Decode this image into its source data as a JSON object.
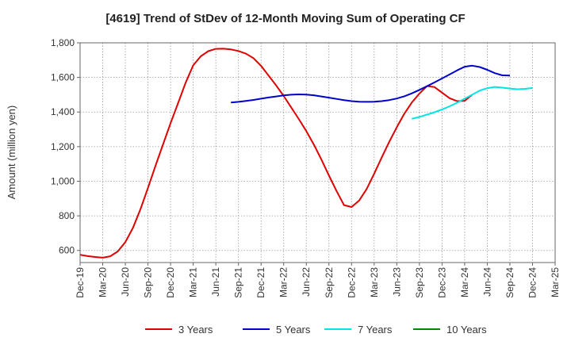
{
  "chart_data": {
    "type": "line",
    "title": "[4619]  Trend of StDev of 12-Month Moving Sum of Operating CF",
    "xlabel": "",
    "ylabel": "Amount (million yen)",
    "ylim": [
      530,
      1800
    ],
    "yticks": [
      600,
      800,
      1000,
      1200,
      1400,
      1600,
      1800
    ],
    "ytick_labels": [
      "600",
      "800",
      "1,000",
      "1,200",
      "1,400",
      "1,600",
      "1,800"
    ],
    "x_start": "2019-12",
    "x_end": "2025-03",
    "xtick_labels": [
      "Dec-19",
      "Mar-20",
      "Jun-20",
      "Sep-20",
      "Dec-20",
      "Mar-21",
      "Jun-21",
      "Sep-21",
      "Dec-21",
      "Mar-22",
      "Jun-22",
      "Sep-22",
      "Dec-22",
      "Mar-23",
      "Jun-23",
      "Sep-23",
      "Dec-23",
      "Mar-24",
      "Jun-24",
      "Sep-24",
      "Dec-24",
      "Mar-25"
    ],
    "grid": true,
    "legend_position": "bottom",
    "series": [
      {
        "name": "3 Years",
        "color": "#e00000",
        "start": "2019-12",
        "values": [
          575,
          567,
          562,
          558,
          566,
          594,
          648,
          730,
          838,
          962,
          1090,
          1213,
          1336,
          1452,
          1570,
          1670,
          1722,
          1752,
          1765,
          1766,
          1762,
          1753,
          1737,
          1711,
          1667,
          1610,
          1554,
          1493,
          1427,
          1360,
          1290,
          1212,
          1125,
          1033,
          944,
          862,
          851,
          888,
          955,
          1043,
          1137,
          1228,
          1312,
          1390,
          1455,
          1507,
          1550,
          1544,
          1512,
          1480,
          1463,
          1465,
          1500
        ]
      },
      {
        "name": "5 Years",
        "color": "#0000cc",
        "start": "2021-08",
        "values": [
          1455,
          1459,
          1464,
          1470,
          1477,
          1484,
          1490,
          1496,
          1500,
          1502,
          1501,
          1497,
          1490,
          1483,
          1476,
          1469,
          1463,
          1460,
          1459,
          1460,
          1463,
          1469,
          1478,
          1491,
          1508,
          1528,
          1549,
          1571,
          1594,
          1617,
          1641,
          1662,
          1668,
          1660,
          1644,
          1625,
          1612,
          1611
        ]
      },
      {
        "name": "7 Years",
        "color": "#00e5e5",
        "start": "2023-08",
        "values": [
          1361,
          1372,
          1385,
          1399,
          1415,
          1433,
          1454,
          1477,
          1500,
          1524,
          1538,
          1545,
          1541,
          1536,
          1532,
          1534,
          1539
        ]
      },
      {
        "name": "10 Years",
        "color": "#008800",
        "start": "2024-09",
        "values": []
      }
    ]
  }
}
